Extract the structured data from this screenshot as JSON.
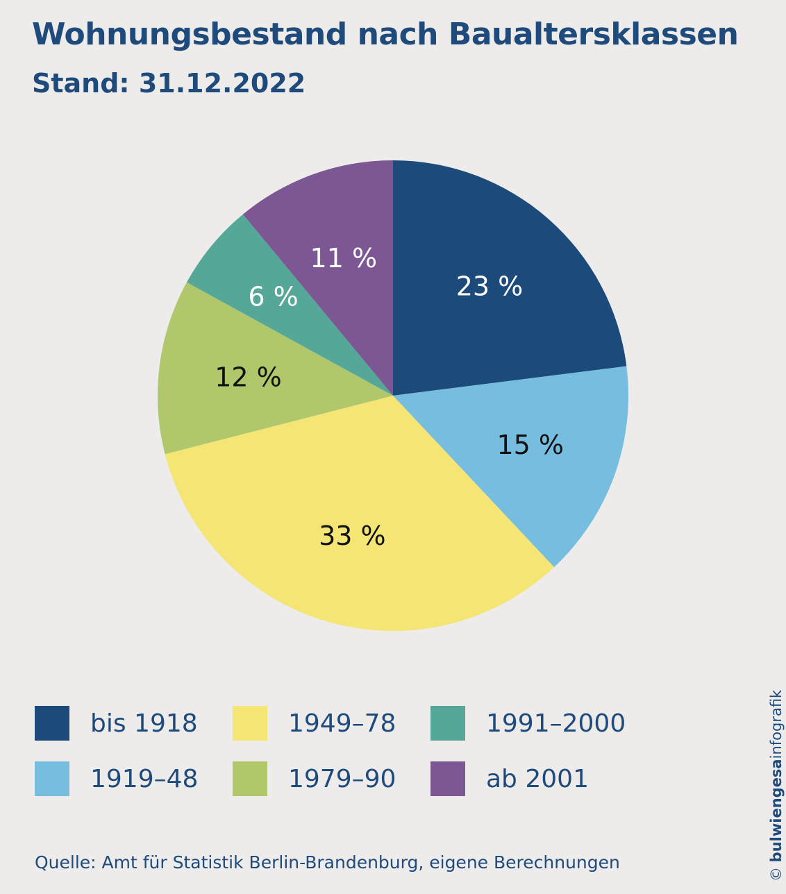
{
  "header": {
    "title": "Wohnungsbestand nach Baualtersklassen",
    "subtitle": "Stand: 31.12.2022"
  },
  "chart_data": {
    "type": "pie",
    "title": "Wohnungsbestand nach Baualtersklassen",
    "subtitle": "Stand: 31.12.2022",
    "slices": [
      {
        "label": "bis 1918",
        "value": 23,
        "display": "23 %",
        "color": "#1c4a7a",
        "label_color": "#ffffff"
      },
      {
        "label": "1919–48",
        "value": 15,
        "display": "15 %",
        "color": "#76bde0",
        "label_color": "#111111"
      },
      {
        "label": "1949–78",
        "value": 33,
        "display": "33 %",
        "color": "#f4e574",
        "label_color": "#111111"
      },
      {
        "label": "1979–90",
        "value": 12,
        "display": "12 %",
        "color": "#b0c76b",
        "label_color": "#111111"
      },
      {
        "label": "1991–2000",
        "value": 6,
        "display": "6 %",
        "color": "#55a898",
        "label_color": "#ffffff"
      },
      {
        "label": "ab 2001",
        "value": 11,
        "display": "11 %",
        "color": "#7c5794",
        "label_color": "#ffffff"
      }
    ],
    "legend_placement": "bottom"
  },
  "legend": {
    "items": [
      {
        "label": "bis 1918",
        "color": "#1c4a7a"
      },
      {
        "label": "1919–48",
        "color": "#76bde0"
      },
      {
        "label": "1949–78",
        "color": "#f4e574"
      },
      {
        "label": "1979–90",
        "color": "#b0c76b"
      },
      {
        "label": "1991–2000",
        "color": "#55a898"
      },
      {
        "label": "ab 2001",
        "color": "#7c5794"
      }
    ]
  },
  "footer": {
    "source": "Quelle: Amt für Statistik Berlin-Brandenburg, eigene Berechnungen",
    "copyright_symbol": "©",
    "copyright_brand_bold": "bulwiengesa",
    "copyright_brand_rest": "infografik"
  }
}
